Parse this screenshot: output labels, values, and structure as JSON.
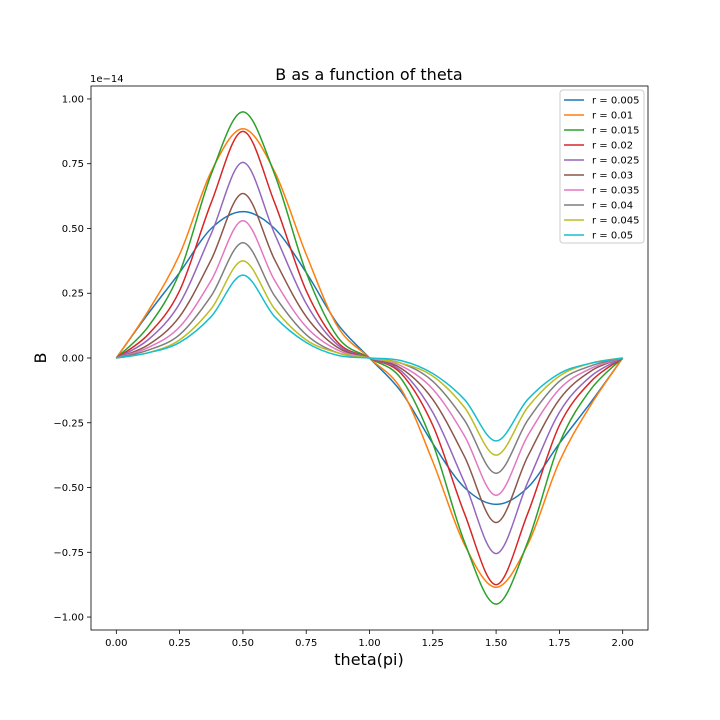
{
  "chart_data": {
    "type": "line",
    "title": "B as a function of theta",
    "xlabel": "theta(pi)",
    "ylabel": "B",
    "y_offset_text": "1e−14",
    "xlim": [
      -0.1,
      2.1
    ],
    "ylim": [
      -1.05,
      1.05
    ],
    "xticks": [
      0.0,
      0.25,
      0.5,
      0.75,
      1.0,
      1.25,
      1.5,
      1.75,
      2.0
    ],
    "xtick_labels": [
      "0.00",
      "0.25",
      "0.50",
      "0.75",
      "1.00",
      "1.25",
      "1.50",
      "1.75",
      "2.00"
    ],
    "yticks": [
      -1.0,
      -0.75,
      -0.5,
      -0.25,
      0.0,
      0.25,
      0.5,
      0.75,
      1.0
    ],
    "ytick_labels": [
      "−1.00",
      "−0.75",
      "−0.50",
      "−0.25",
      "0.00",
      "0.25",
      "0.50",
      "0.75",
      "1.00"
    ],
    "grid": false,
    "legend_position": "top-right",
    "x": [
      0.0,
      0.125,
      0.25,
      0.375,
      0.5,
      0.625,
      0.75,
      0.875,
      1.0,
      1.125,
      1.25,
      1.375,
      1.5,
      1.625,
      1.75,
      1.875,
      2.0
    ],
    "series": [
      {
        "name": "r = 0.005",
        "color": "#1f77b4",
        "values": [
          0.0,
          0.17,
          0.33,
          0.5,
          0.565,
          0.5,
          0.33,
          0.13,
          0.0,
          -0.13,
          -0.33,
          -0.5,
          -0.565,
          -0.5,
          -0.33,
          -0.17,
          0.0
        ]
      },
      {
        "name": "r = 0.01",
        "color": "#ff7f0e",
        "values": [
          0.0,
          0.18,
          0.4,
          0.72,
          0.885,
          0.72,
          0.4,
          0.12,
          0.0,
          -0.12,
          -0.4,
          -0.72,
          -0.885,
          -0.72,
          -0.4,
          -0.18,
          0.0
        ]
      },
      {
        "name": "r = 0.015",
        "color": "#2ca02c",
        "values": [
          0.0,
          0.12,
          0.33,
          0.71,
          0.95,
          0.71,
          0.33,
          0.08,
          0.0,
          -0.08,
          -0.33,
          -0.71,
          -0.95,
          -0.71,
          -0.33,
          -0.12,
          0.0
        ]
      },
      {
        "name": "r = 0.02",
        "color": "#d62728",
        "values": [
          0.0,
          0.09,
          0.26,
          0.6,
          0.875,
          0.6,
          0.26,
          0.06,
          0.0,
          -0.06,
          -0.26,
          -0.6,
          -0.875,
          -0.6,
          -0.26,
          -0.09,
          0.0
        ]
      },
      {
        "name": "r = 0.025",
        "color": "#9467bd",
        "values": [
          0.0,
          0.07,
          0.21,
          0.48,
          0.755,
          0.48,
          0.21,
          0.05,
          0.0,
          -0.05,
          -0.21,
          -0.48,
          -0.755,
          -0.48,
          -0.21,
          -0.07,
          0.0
        ]
      },
      {
        "name": "r = 0.03",
        "color": "#8c564b",
        "values": [
          0.0,
          0.05,
          0.16,
          0.38,
          0.635,
          0.38,
          0.16,
          0.04,
          0.0,
          -0.04,
          -0.16,
          -0.38,
          -0.635,
          -0.38,
          -0.16,
          -0.05,
          0.0
        ]
      },
      {
        "name": "r = 0.035",
        "color": "#e377c2",
        "values": [
          0.0,
          0.04,
          0.12,
          0.3,
          0.53,
          0.3,
          0.12,
          0.03,
          0.0,
          -0.03,
          -0.12,
          -0.3,
          -0.53,
          -0.3,
          -0.12,
          -0.04,
          0.0
        ]
      },
      {
        "name": "r = 0.04",
        "color": "#7f7f7f",
        "values": [
          0.0,
          0.03,
          0.09,
          0.24,
          0.445,
          0.24,
          0.09,
          0.02,
          0.0,
          -0.02,
          -0.09,
          -0.24,
          -0.445,
          -0.24,
          -0.09,
          -0.03,
          0.0
        ]
      },
      {
        "name": "r = 0.045",
        "color": "#bcbd22",
        "values": [
          0.0,
          0.02,
          0.07,
          0.19,
          0.375,
          0.19,
          0.07,
          0.02,
          0.0,
          -0.02,
          -0.07,
          -0.19,
          -0.375,
          -0.19,
          -0.07,
          -0.02,
          0.0
        ]
      },
      {
        "name": "r = 0.05",
        "color": "#17becf",
        "values": [
          0.0,
          0.02,
          0.06,
          0.16,
          0.32,
          0.16,
          0.06,
          0.01,
          0.0,
          -0.01,
          -0.06,
          -0.16,
          -0.32,
          -0.16,
          -0.06,
          -0.02,
          0.0
        ]
      }
    ]
  }
}
